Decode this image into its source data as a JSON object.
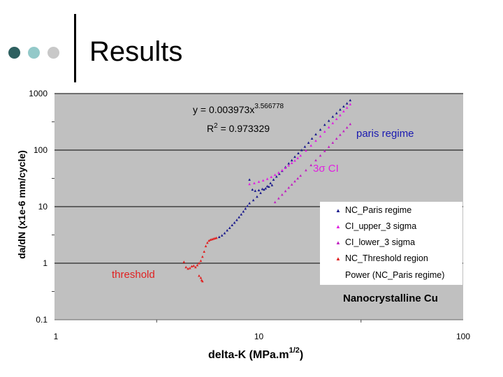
{
  "slide": {
    "title": "Results",
    "bullet_colors": [
      "#2e6060",
      "#93c9c9",
      "#c8c8c8"
    ]
  },
  "chart_data": {
    "type": "scatter",
    "x_scale": "log",
    "y_scale": "log",
    "xlim": [
      1,
      100
    ],
    "ylim": [
      0.1,
      1000
    ],
    "xlabel": "delta-K (MPa.m",
    "xlabel_sup": "1/2",
    "xlabel_tail": ")",
    "ylabel": "da/dN (x1e-6 mm/cycle)",
    "x_ticks": [
      "1",
      "10",
      "100"
    ],
    "y_ticks": [
      "0.1",
      "1",
      "10",
      "100",
      "1000"
    ],
    "x_tick_values": [
      1,
      10,
      100
    ],
    "y_tick_values": [
      0.1,
      1,
      10,
      100,
      1000
    ],
    "grid": "horizontal major",
    "plot_background": "#c0c0c0",
    "equation": "y = 0.003973x",
    "equation_exp": "3.566778",
    "r2_prefix": "R",
    "r2_sup": "2",
    "r2_value": " = 0.973329",
    "annotations": {
      "paris": "paris regime",
      "ci": "3σ CI",
      "threshold": "threshold",
      "material": "Nanocrystalline Cu"
    },
    "legend_position": "right",
    "legend": [
      {
        "label": "NC_Paris regime",
        "color": "#1a1a8c"
      },
      {
        "label": "CI_upper_3 sigma",
        "color": "#e020e0"
      },
      {
        "label": "CI_lower_3 sigma",
        "color": "#c020c0"
      },
      {
        "label": "NC_Threshold region",
        "color": "#e02020"
      },
      {
        "label": "Power (NC_Paris regime)",
        "color": ""
      }
    ],
    "series": [
      {
        "name": "NC_Paris regime",
        "color": "#1a1a8c",
        "x": [
          6.4,
          6.6,
          6.8,
          7.0,
          7.2,
          7.4,
          7.6,
          7.8,
          8.0,
          8.2,
          8.4,
          8.6,
          8.8,
          9.0,
          9.4,
          9.8,
          10.2,
          10.6,
          11.0,
          11.4,
          11.8,
          12.2,
          12.6,
          13.0,
          13.5,
          14.0,
          14.5,
          15.0,
          15.6,
          16.2,
          16.8,
          17.5,
          18.2,
          19.0,
          20.0,
          21.0,
          22.0,
          23.0,
          24.0,
          25.0,
          26.0,
          27.0,
          28.0,
          9.0,
          9.3,
          9.6,
          10.0,
          10.4,
          10.8,
          11.2,
          11.6
        ],
        "y": [
          2.9,
          3.1,
          3.4,
          3.8,
          4.2,
          4.7,
          5.2,
          5.8,
          6.5,
          7.3,
          8.2,
          9.2,
          10.3,
          11.5,
          13.0,
          15.0,
          17.5,
          20.0,
          23.0,
          26.0,
          30.0,
          34.0,
          38.0,
          43.0,
          50.0,
          58.0,
          66.0,
          76.0,
          88.0,
          100.0,
          115.0,
          135.0,
          160.0,
          190.0,
          230.0,
          280.0,
          330.0,
          390.0,
          450.0,
          520.0,
          590.0,
          670.0,
          760.0,
          30.0,
          20.0,
          19.0,
          19.5,
          20.5,
          21.0,
          22.5,
          24.0
        ]
      },
      {
        "name": "CI_upper_3 sigma",
        "color": "#e020e0",
        "x": [
          9.0,
          9.5,
          10.0,
          10.5,
          11.0,
          11.5,
          12.0,
          12.5,
          13.0,
          13.5,
          14.0,
          14.5,
          15.0,
          15.5,
          16.0,
          17.0,
          18.0,
          19.0,
          20.0,
          21.0,
          22.0,
          23.0,
          24.0,
          25.0,
          26.0,
          27.0,
          28.0
        ],
        "y": [
          25.0,
          26.0,
          27.5,
          29.0,
          31.0,
          33.5,
          36.5,
          40.0,
          44.0,
          48.5,
          53.5,
          59.0,
          65.0,
          72.0,
          80.0,
          98.0,
          120.0,
          146.0,
          176.0,
          212.0,
          253.0,
          300.0,
          354.0,
          415.0,
          484.0,
          560.0,
          646.0
        ]
      },
      {
        "name": "CI_lower_3 sigma",
        "color": "#c020c0",
        "x": [
          12.0,
          12.5,
          13.0,
          13.5,
          14.0,
          14.5,
          15.0,
          15.5,
          16.0,
          17.0,
          18.0,
          19.0,
          20.0,
          21.0,
          22.0,
          23.0,
          24.0,
          25.0,
          26.0,
          27.0,
          28.0
        ],
        "y": [
          12.0,
          14.0,
          16.3,
          18.8,
          21.6,
          24.6,
          28.0,
          31.5,
          35.3,
          44.0,
          54.0,
          66.0,
          80.0,
          96.0,
          114.0,
          135.0,
          159.0,
          186.0,
          216.0,
          250.0,
          288.0
        ]
      },
      {
        "name": "NC_Threshold region",
        "color": "#e02020",
        "x": [
          4.3,
          4.4,
          4.5,
          4.6,
          4.7,
          4.8,
          4.9,
          5.0,
          5.1,
          5.2,
          5.3,
          5.4,
          5.5,
          5.6,
          5.7,
          5.8,
          5.9,
          6.0,
          6.1,
          6.2,
          5.1,
          5.2,
          5.25,
          5.3
        ],
        "y": [
          1.05,
          0.85,
          0.8,
          0.82,
          0.88,
          0.9,
          0.85,
          0.92,
          1.0,
          1.1,
          1.3,
          1.6,
          2.0,
          2.3,
          2.5,
          2.6,
          2.65,
          2.7,
          2.75,
          2.8,
          0.6,
          0.55,
          0.5,
          0.48
        ]
      }
    ]
  }
}
